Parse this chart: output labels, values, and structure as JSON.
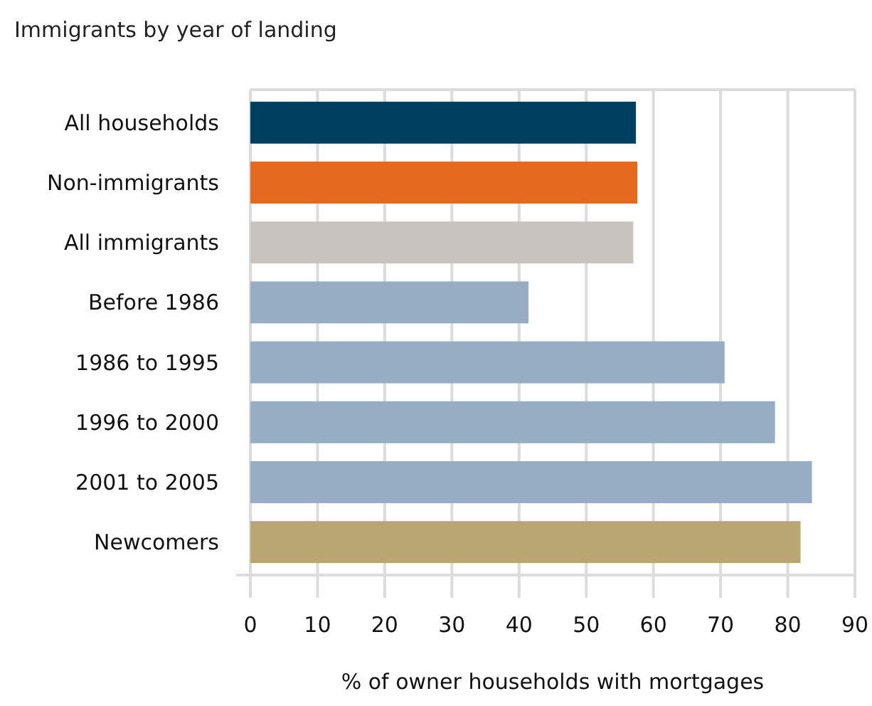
{
  "chart_data": {
    "type": "bar",
    "orientation": "horizontal",
    "title": "Immigrants by year of landing",
    "xlabel": "% of owner households with mortgages",
    "categories": [
      "All households",
      "Non-immigrants",
      "All immigrants",
      "Before 1986",
      "1986 to 1995",
      "1996 to 2000",
      "2001 to 2005",
      "Newcomers"
    ],
    "values": [
      57.4,
      57.6,
      57.0,
      41.4,
      70.6,
      78.1,
      83.6,
      81.9
    ],
    "colors": [
      "#003f5f",
      "#e5691f",
      "#c9c3c0",
      "#96adc4",
      "#96adc4",
      "#96adc4",
      "#96adc4",
      "#b9a673"
    ],
    "xlim": [
      0,
      90
    ],
    "xticks": [
      0,
      10,
      20,
      30,
      40,
      50,
      60,
      70,
      80,
      90
    ],
    "grid": "x"
  }
}
